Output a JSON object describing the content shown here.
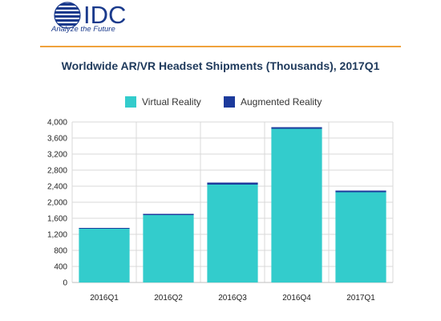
{
  "logo": {
    "name": "IDC",
    "tagline": "Analyze the Future",
    "color": "#1a3a8c"
  },
  "chart_data": {
    "type": "bar",
    "stacked": true,
    "title": "Worldwide AR/VR Headset Shipments (Thousands), 2017Q1",
    "categories": [
      "2016Q1",
      "2016Q2",
      "2016Q3",
      "2016Q4",
      "2017Q1"
    ],
    "series": [
      {
        "name": "Virtual Reality",
        "color": "#33cccc",
        "values": [
          1340,
          1680,
          2440,
          3830,
          2250
        ]
      },
      {
        "name": "Augmented Reality",
        "color": "#1c3a9c",
        "values": [
          20,
          30,
          50,
          40,
          40
        ]
      }
    ],
    "ylim": [
      0,
      4000
    ],
    "yticks": [
      0,
      400,
      800,
      1200,
      1600,
      2000,
      2400,
      2800,
      3200,
      3600,
      4000
    ],
    "ytick_labels": [
      "0",
      "400",
      "800",
      "1,200",
      "1,600",
      "2,000",
      "2,400",
      "2,800",
      "3,200",
      "3,600",
      "4,000"
    ],
    "grid": true,
    "legend_position": "top"
  }
}
